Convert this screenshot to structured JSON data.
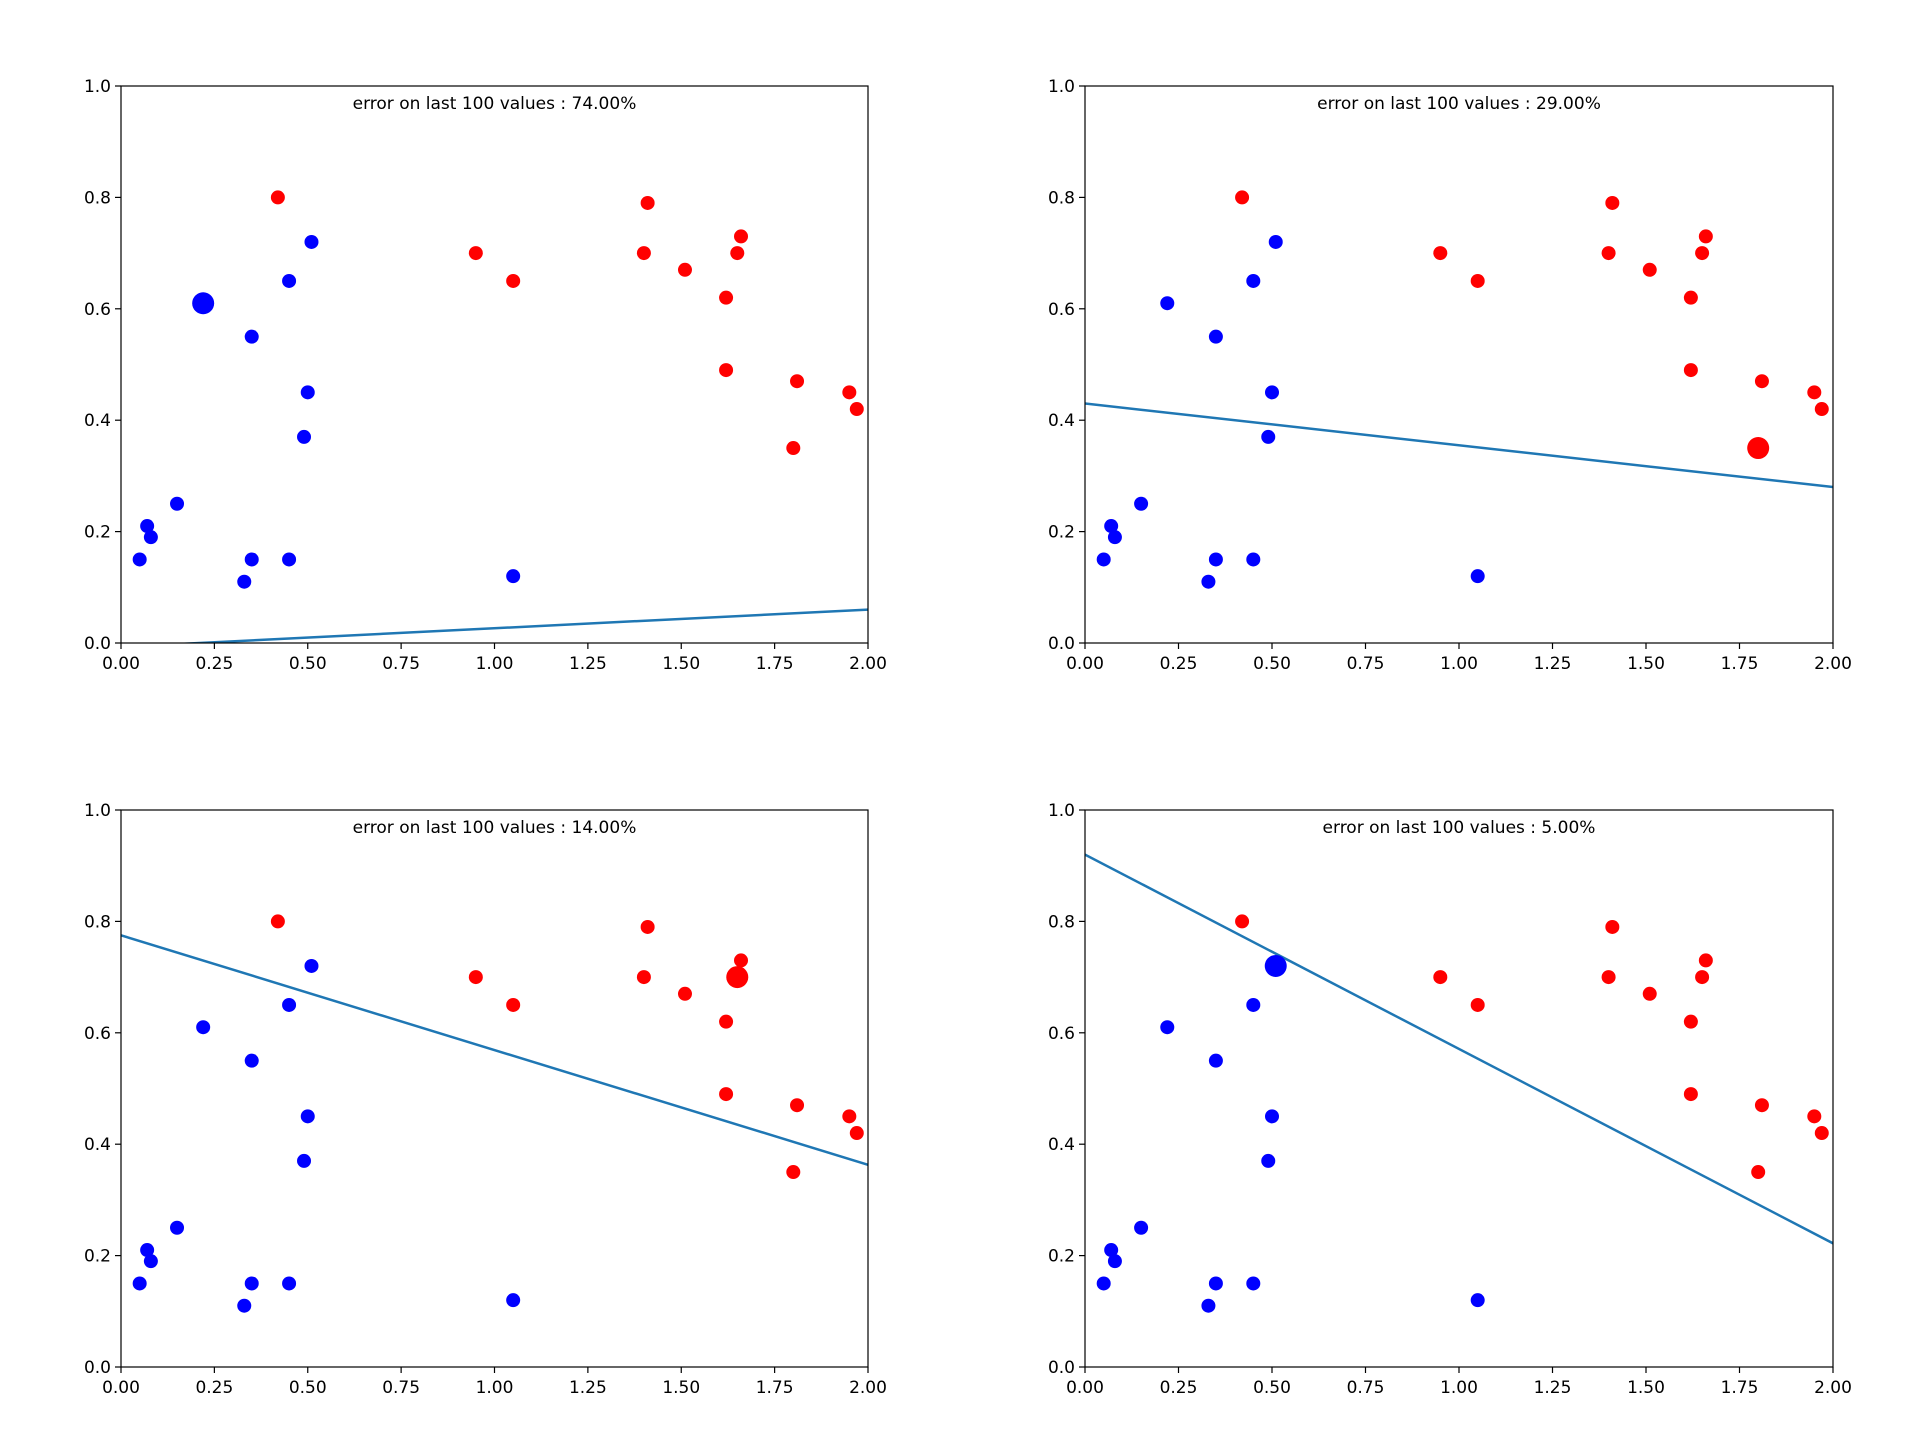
{
  "chart_data": [
    {
      "type": "scatter",
      "title": "error on last 100 values : 74.00%",
      "xlim": [
        0,
        2
      ],
      "ylim": [
        0,
        1
      ],
      "xticks": [
        "0.00",
        "0.25",
        "0.50",
        "0.75",
        "1.00",
        "1.25",
        "1.50",
        "1.75",
        "2.00"
      ],
      "yticks": [
        "0.0",
        "0.2",
        "0.4",
        "0.6",
        "0.8",
        "1.0"
      ],
      "highlight": {
        "x": 0.22,
        "y": 0.61,
        "color": "#0000ff"
      },
      "line": {
        "x": [
          0,
          2
        ],
        "y": [
          -0.007,
          0.06
        ],
        "color": "#1f77b4"
      }
    },
    {
      "type": "scatter",
      "title": "error on last 100 values : 29.00%",
      "xlim": [
        0,
        2
      ],
      "ylim": [
        0,
        1
      ],
      "xticks": [
        "0.00",
        "0.25",
        "0.50",
        "0.75",
        "1.00",
        "1.25",
        "1.50",
        "1.75",
        "2.00"
      ],
      "yticks": [
        "0.0",
        "0.2",
        "0.4",
        "0.6",
        "0.8",
        "1.0"
      ],
      "highlight": {
        "x": 1.8,
        "y": 0.35,
        "color": "#ff0000"
      },
      "line": {
        "x": [
          0,
          2
        ],
        "y": [
          0.43,
          0.28
        ],
        "color": "#1f77b4"
      }
    },
    {
      "type": "scatter",
      "title": "error on last 100 values : 14.00%",
      "xlim": [
        0,
        2
      ],
      "ylim": [
        0,
        1
      ],
      "xticks": [
        "0.00",
        "0.25",
        "0.50",
        "0.75",
        "1.00",
        "1.25",
        "1.50",
        "1.75",
        "2.00"
      ],
      "yticks": [
        "0.0",
        "0.2",
        "0.4",
        "0.6",
        "0.8",
        "1.0"
      ],
      "highlight": {
        "x": 1.65,
        "y": 0.7,
        "color": "#ff0000"
      },
      "line": {
        "x": [
          0,
          2
        ],
        "y": [
          0.775,
          0.363
        ],
        "color": "#1f77b4"
      }
    },
    {
      "type": "scatter",
      "title": "error on last 100 values : 5.00%",
      "xlim": [
        0,
        2
      ],
      "ylim": [
        0,
        1
      ],
      "xticks": [
        "0.00",
        "0.25",
        "0.50",
        "0.75",
        "1.00",
        "1.25",
        "1.50",
        "1.75",
        "2.00"
      ],
      "yticks": [
        "0.0",
        "0.2",
        "0.4",
        "0.6",
        "0.8",
        "1.0"
      ],
      "highlight": {
        "x": 0.51,
        "y": 0.72,
        "color": "#0000ff"
      },
      "line": {
        "x": [
          0,
          2
        ],
        "y": [
          0.92,
          0.222
        ],
        "color": "#1f77b4"
      }
    }
  ],
  "points": {
    "blue": {
      "color": "#0000ff",
      "x": [
        0.05,
        0.07,
        0.08,
        0.15,
        0.22,
        0.33,
        0.35,
        0.35,
        0.45,
        0.45,
        0.49,
        0.5,
        0.51,
        1.05
      ],
      "y": [
        0.15,
        0.21,
        0.19,
        0.25,
        0.61,
        0.11,
        0.15,
        0.55,
        0.15,
        0.65,
        0.37,
        0.45,
        0.72,
        0.12
      ]
    },
    "red": {
      "color": "#ff0000",
      "x": [
        0.42,
        0.95,
        1.05,
        1.4,
        1.41,
        1.51,
        1.62,
        1.62,
        1.65,
        1.66,
        1.8,
        1.81,
        1.95,
        1.97
      ],
      "y": [
        0.8,
        0.7,
        0.65,
        0.7,
        0.79,
        0.67,
        0.62,
        0.49,
        0.7,
        0.73,
        0.35,
        0.47,
        0.45,
        0.42
      ]
    }
  }
}
